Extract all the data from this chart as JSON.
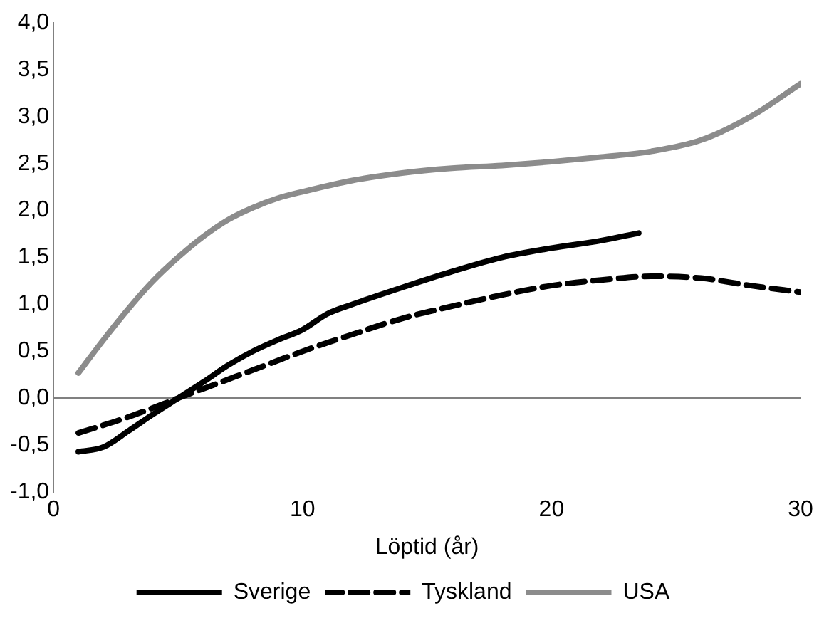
{
  "chart_data": {
    "type": "line",
    "xlabel": "Löptid (år)",
    "xlim": [
      0,
      30
    ],
    "xticks": [
      0,
      10,
      20,
      30
    ],
    "ylim": [
      -1,
      4
    ],
    "yticks": [
      {
        "value": -1,
        "label": "-1,0"
      },
      {
        "value": -0.5,
        "label": "-0,5"
      },
      {
        "value": 0,
        "label": "0,0"
      },
      {
        "value": 0.5,
        "label": "0,5"
      },
      {
        "value": 1,
        "label": "1,0"
      },
      {
        "value": 1.5,
        "label": "1,5"
      },
      {
        "value": 2,
        "label": "2,0"
      },
      {
        "value": 2.5,
        "label": "2,5"
      },
      {
        "value": 3,
        "label": "3,0"
      },
      {
        "value": 3.5,
        "label": "3,5"
      },
      {
        "value": 4,
        "label": "4,0"
      }
    ],
    "grid": false,
    "legend": "bottom",
    "marker": "none",
    "ref_lines": [
      {
        "axis": "y",
        "value": 0,
        "color": "#808080"
      }
    ],
    "series": [
      {
        "name": "Sverige",
        "color": "#000000",
        "line_style": "solid",
        "x": [
          1,
          2,
          3,
          4,
          5,
          6,
          7,
          8,
          9,
          10,
          11,
          12,
          14,
          16,
          18,
          20,
          22,
          23.5
        ],
        "values": [
          -0.57,
          -0.52,
          -0.35,
          -0.17,
          0.0,
          0.17,
          0.35,
          0.5,
          0.62,
          0.73,
          0.9,
          1.0,
          1.18,
          1.35,
          1.5,
          1.6,
          1.68,
          1.76
        ]
      },
      {
        "name": "Tyskland",
        "color": "#000000",
        "line_style": "dashed",
        "x": [
          1,
          3,
          5,
          6,
          8,
          10,
          12,
          14,
          16,
          18,
          20,
          22,
          24,
          26,
          28,
          30
        ],
        "values": [
          -0.37,
          -0.2,
          0.0,
          0.1,
          0.3,
          0.5,
          0.68,
          0.85,
          0.98,
          1.1,
          1.2,
          1.26,
          1.3,
          1.28,
          1.2,
          1.13
        ]
      },
      {
        "name": "USA",
        "color": "#8c8c8c",
        "line_style": "solid",
        "x": [
          1,
          2,
          3,
          4,
          5,
          6,
          7,
          8,
          9,
          10,
          12,
          14,
          16,
          18,
          20,
          22,
          24,
          26,
          28,
          30
        ],
        "values": [
          0.27,
          0.62,
          0.95,
          1.25,
          1.5,
          1.72,
          1.9,
          2.03,
          2.13,
          2.2,
          2.32,
          2.4,
          2.45,
          2.48,
          2.52,
          2.57,
          2.63,
          2.75,
          3.0,
          3.35
        ]
      }
    ]
  }
}
